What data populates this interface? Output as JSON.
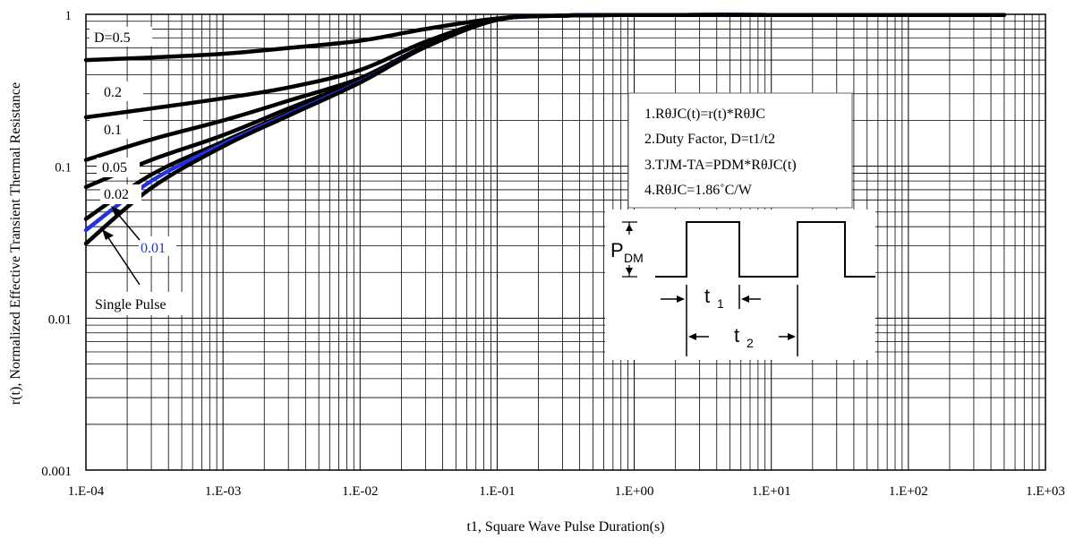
{
  "chart_data": {
    "type": "line",
    "title": "",
    "xlabel": "t1, Square Wave Pulse Duration(s)",
    "ylabel": "r(t), Normalized Effective Transient Thermal Resistance",
    "x_scale": "log",
    "y_scale": "log",
    "xlim": [
      0.0001,
      1000
    ],
    "ylim": [
      0.001,
      1
    ],
    "grid": true,
    "x_ticks": [
      "1.E-04",
      "1.E-03",
      "1.E-02",
      "1.E-01",
      "1.E+00",
      "1.E+01",
      "1.E+02",
      "1.E+03"
    ],
    "y_ticks": [
      "0.001",
      "0.01",
      "0.1",
      "1"
    ],
    "series": [
      {
        "name": "D=0.5",
        "color": "#000000",
        "x": [
          0.0001,
          0.0003,
          0.001,
          0.003,
          0.01,
          0.03,
          0.1,
          0.3,
          1,
          10,
          100,
          500
        ],
        "y": [
          0.5,
          0.52,
          0.55,
          0.6,
          0.67,
          0.8,
          0.94,
          0.98,
          0.99,
          0.99,
          0.99,
          0.99
        ]
      },
      {
        "name": "0.2",
        "color": "#000000",
        "x": [
          0.0001,
          0.0003,
          0.001,
          0.003,
          0.01,
          0.03,
          0.1,
          0.3,
          1,
          10,
          100,
          500
        ],
        "y": [
          0.21,
          0.24,
          0.28,
          0.33,
          0.43,
          0.66,
          0.93,
          0.98,
          0.99,
          0.99,
          0.99,
          0.99
        ]
      },
      {
        "name": "0.1",
        "color": "#000000",
        "x": [
          0.0001,
          0.0003,
          0.001,
          0.003,
          0.01,
          0.03,
          0.1,
          0.3,
          1,
          10,
          100,
          500
        ],
        "y": [
          0.11,
          0.15,
          0.2,
          0.27,
          0.38,
          0.62,
          0.92,
          0.98,
          0.99,
          0.99,
          0.99,
          0.99
        ]
      },
      {
        "name": "0.05",
        "color": "#000000",
        "x": [
          0.0001,
          0.0003,
          0.001,
          0.003,
          0.01,
          0.03,
          0.1,
          0.3,
          1,
          10,
          100,
          500
        ],
        "y": [
          0.073,
          0.11,
          0.16,
          0.24,
          0.37,
          0.61,
          0.92,
          0.98,
          0.99,
          0.99,
          0.99,
          0.99
        ]
      },
      {
        "name": "0.02",
        "color": "#000000",
        "x": [
          0.0001,
          0.0003,
          0.001,
          0.003,
          0.01,
          0.03,
          0.1,
          0.3,
          1,
          10,
          100,
          500
        ],
        "y": [
          0.045,
          0.088,
          0.145,
          0.225,
          0.36,
          0.61,
          0.92,
          0.98,
          0.99,
          0.99,
          0.99,
          0.99
        ]
      },
      {
        "name": "0.01",
        "color": "#2233dd",
        "x": [
          0.0001,
          0.0003,
          0.001,
          0.003,
          0.01,
          0.03,
          0.1,
          0.3,
          1,
          10,
          100,
          500
        ],
        "y": [
          0.038,
          0.08,
          0.14,
          0.22,
          0.36,
          0.61,
          0.92,
          0.98,
          0.99,
          0.99,
          0.99,
          0.99
        ]
      },
      {
        "name": "Single Pulse",
        "color": "#000000",
        "x": [
          0.0001,
          0.0003,
          0.001,
          0.003,
          0.01,
          0.03,
          0.1,
          0.3,
          1,
          10,
          100,
          500
        ],
        "y": [
          0.031,
          0.072,
          0.135,
          0.215,
          0.355,
          0.61,
          0.92,
          0.98,
          0.99,
          0.99,
          0.99,
          0.99
        ]
      }
    ],
    "curve_labels": [
      "D=0.5",
      "0.2",
      "0.1",
      "0.05",
      "0.02",
      "0.01",
      "Single Pulse"
    ],
    "notes": [
      "1.RθJC(t)=r(t)*RθJC",
      "2.Duty Factor, D=t1/t2",
      "3.TJM-TA=PDM*RθJC(t)",
      "4.RθJC=1.86˚C/W"
    ],
    "diagram": {
      "pdm": "P",
      "pdm_sub": "DM",
      "t1": "t",
      "t1_sub": "1",
      "t2": "t",
      "t2_sub": "2"
    }
  }
}
